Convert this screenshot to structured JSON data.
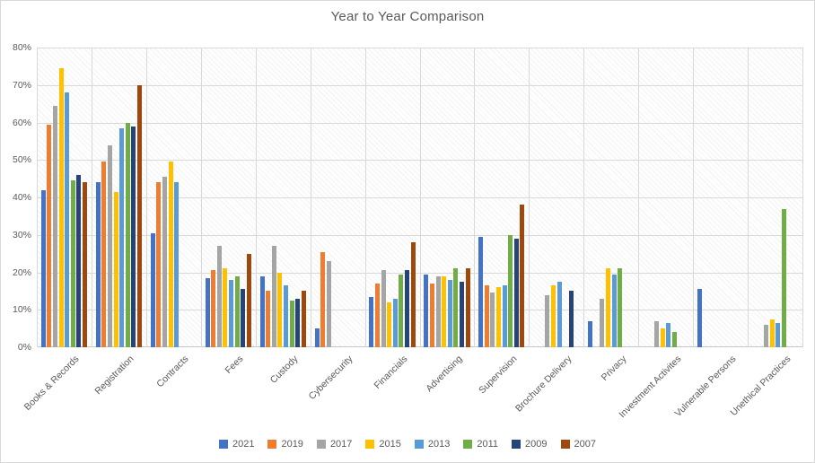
{
  "chart_data": {
    "type": "bar",
    "title": "Year to Year Comparison",
    "categories": [
      "Books & Records",
      "Registration",
      "Contracts",
      "Fees",
      "Custody",
      "Cybersecurity",
      "Financials",
      "Advertising",
      "Supervision",
      "Brochure Delivery",
      "Privacy",
      "Investment Activites",
      "Vulnerable Persons",
      "Unethical Practices"
    ],
    "series": [
      {
        "name": "2021",
        "color": "#4472C4",
        "values": [
          42,
          44,
          30.5,
          18.5,
          19,
          5,
          13.5,
          19.5,
          29.5,
          null,
          7,
          null,
          15.5,
          null
        ]
      },
      {
        "name": "2019",
        "color": "#ED7D31",
        "values": [
          59.5,
          49.5,
          44,
          20.5,
          15,
          25.5,
          17,
          17,
          16.5,
          null,
          null,
          null,
          null,
          null
        ]
      },
      {
        "name": "2017",
        "color": "#A5A5A5",
        "values": [
          64.5,
          54,
          45.5,
          27,
          27,
          23,
          20.5,
          19,
          14.5,
          14,
          13,
          7,
          null,
          6
        ]
      },
      {
        "name": "2015",
        "color": "#FFC000",
        "values": [
          74.5,
          41.5,
          49.5,
          21,
          20,
          null,
          12,
          19,
          16,
          16.5,
          21,
          5,
          null,
          7.5
        ]
      },
      {
        "name": "2013",
        "color": "#5B9BD5",
        "values": [
          68,
          58.5,
          44,
          18,
          16.5,
          null,
          13,
          18,
          16.5,
          17.5,
          19.5,
          6.5,
          null,
          6.5
        ]
      },
      {
        "name": "2011",
        "color": "#70AD47",
        "values": [
          44.5,
          60,
          null,
          19,
          12.5,
          null,
          19.5,
          21,
          30,
          null,
          21,
          4,
          null,
          37
        ]
      },
      {
        "name": "2009",
        "color": "#264478",
        "values": [
          46,
          59,
          null,
          15.5,
          13,
          null,
          20.5,
          17.5,
          29,
          15,
          null,
          null,
          null,
          null
        ]
      },
      {
        "name": "2007",
        "color": "#9E480E",
        "values": [
          44,
          70,
          null,
          25,
          15,
          null,
          28,
          21,
          38,
          null,
          null,
          null,
          null,
          null
        ]
      }
    ],
    "ylim": [
      0,
      80
    ],
    "ytick_labels": [
      "0%",
      "10%",
      "20%",
      "30%",
      "40%",
      "50%",
      "60%",
      "70%",
      "80%"
    ],
    "grid": true,
    "legend_position": "bottom",
    "plot_background": "diagonal-hatch",
    "xlabel": "",
    "ylabel": ""
  }
}
